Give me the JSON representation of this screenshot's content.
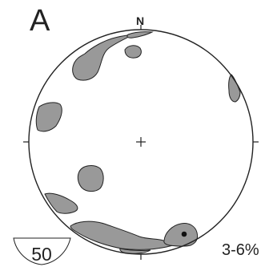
{
  "panel_label": "A",
  "north_label": "N",
  "data_count": "50",
  "contour_interval": "3-6%",
  "colors": {
    "density_fill": "#999999",
    "outline": "#222222",
    "max_point": "#111111",
    "background": "#ffffff"
  },
  "diagram": {
    "type": "equal-area stereonet pole density contour plot",
    "shaded_contour_regions": 10,
    "maximum_marker": true,
    "center_mark": true,
    "cardinal_ticks": 4
  }
}
